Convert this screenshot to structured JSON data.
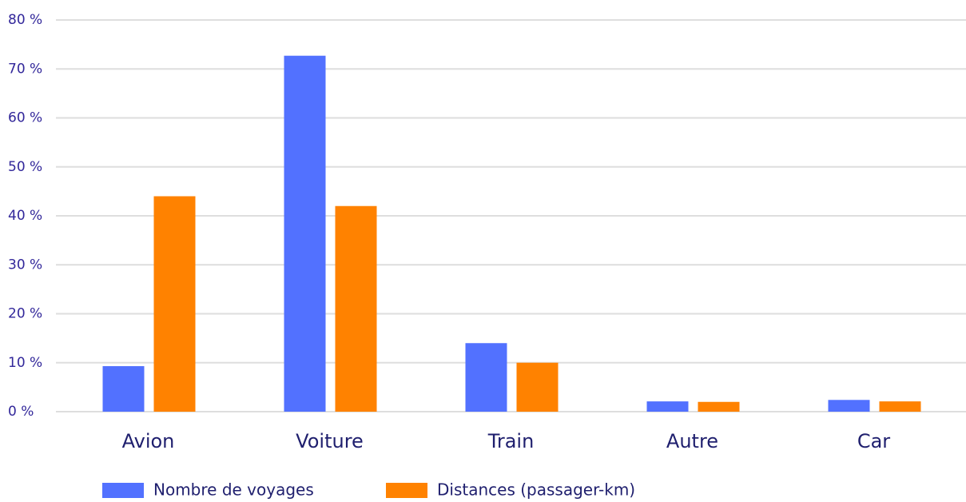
{
  "chart_data": {
    "type": "bar",
    "categories": [
      "Avion",
      "Voiture",
      "Train",
      "Autre",
      "Car"
    ],
    "series": [
      {
        "name": "Nombre de voyages",
        "color": "#5271ff",
        "values": [
          9.3,
          72.7,
          14,
          2.1,
          2.4
        ]
      },
      {
        "name": "Distances (passager-km)",
        "color": "#ff8200",
        "values": [
          44,
          42,
          10,
          2,
          2.1
        ]
      }
    ],
    "ylim": [
      0,
      80
    ],
    "yticks": [
      {
        "value": 0,
        "label": "0 %"
      },
      {
        "value": 10,
        "label": "10 %"
      },
      {
        "value": 20,
        "label": "20 %"
      },
      {
        "value": 30,
        "label": "30 %"
      },
      {
        "value": 40,
        "label": "40 %"
      },
      {
        "value": 50,
        "label": "50 %"
      },
      {
        "value": 60,
        "label": "60 %"
      },
      {
        "value": 70,
        "label": "70 %"
      },
      {
        "value": 80,
        "label": "80 %"
      }
    ],
    "grid": true,
    "legend": "bottom"
  }
}
